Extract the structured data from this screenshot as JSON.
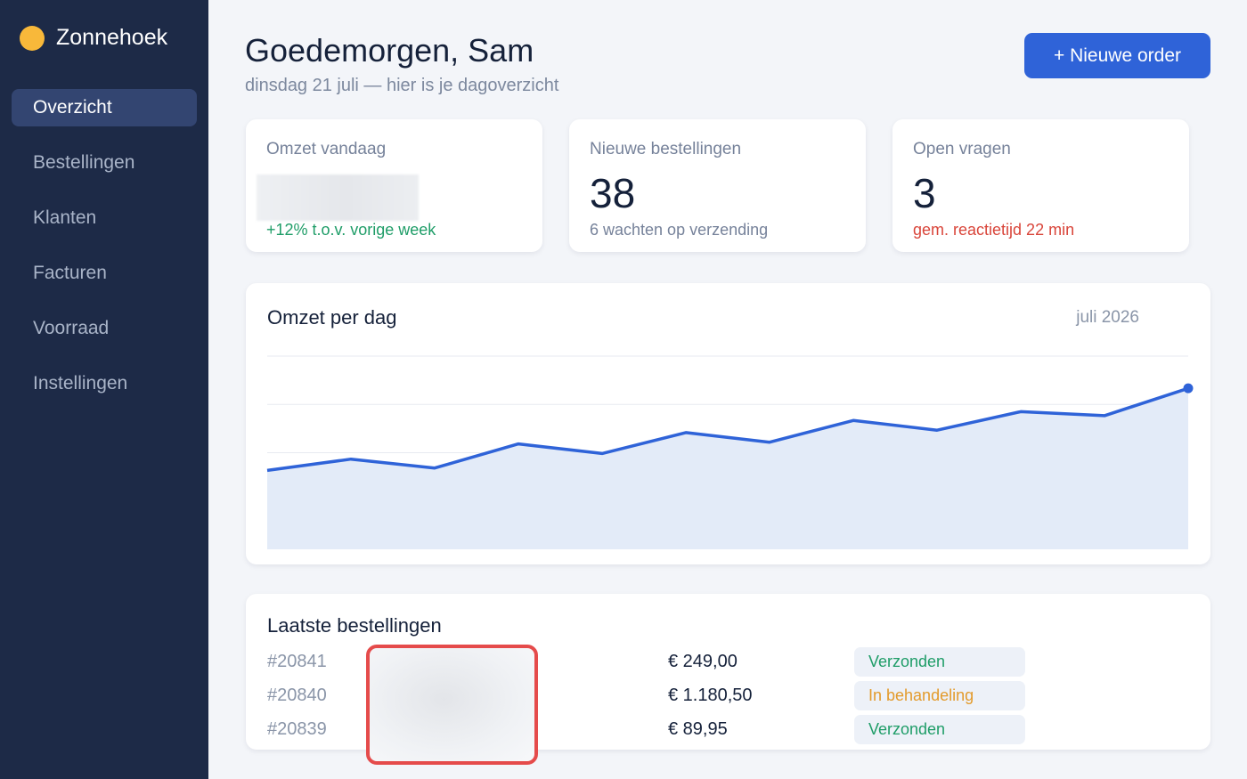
{
  "app": {
    "name": "Zonnehoek"
  },
  "colors": {
    "accent": "#2f63d8",
    "sidebar": "#1d2a47",
    "brand_dot": "#f8b83a",
    "positive": "#1f9d68",
    "negative": "#d9453a",
    "warning": "#e39b2c"
  },
  "sidebar": {
    "items": [
      {
        "label": "Overzicht",
        "active": true
      },
      {
        "label": "Bestellingen",
        "active": false
      },
      {
        "label": "Klanten",
        "active": false
      },
      {
        "label": "Facturen",
        "active": false
      },
      {
        "label": "Voorraad",
        "active": false
      },
      {
        "label": "Instellingen",
        "active": false
      }
    ]
  },
  "header": {
    "greeting": "Goedemorgen, Sam",
    "subtitle": "dinsdag 21 juli — hier is je dagoverzicht",
    "new_order_label": "+ Nieuwe order"
  },
  "stats": [
    {
      "label": "Omzet vandaag",
      "value": "",
      "sub": "+12% t.o.v. vorige week"
    },
    {
      "label": "Nieuwe bestellingen",
      "value": "38",
      "sub": "6 wachten op verzending"
    },
    {
      "label": "Open vragen",
      "value": "3",
      "sub": "gem. reactietijd 22 min"
    }
  ],
  "chart": {
    "title": "Omzet per dag",
    "period": "juli 2026"
  },
  "chart_data": {
    "type": "area",
    "title": "Omzet per dag",
    "x": [
      1,
      2,
      3,
      4,
      5,
      6,
      7,
      8,
      9,
      10,
      11,
      12
    ],
    "series": [
      {
        "values": [
          9.8,
          11.2,
          10.1,
          13.1,
          11.9,
          14.5,
          13.3,
          16.0,
          14.8,
          17.1,
          16.6,
          20.0
        ]
      }
    ],
    "ylim": [
      0,
      24
    ],
    "grid": true,
    "color": "#2f63d8",
    "fill": "#e3ebf8"
  },
  "orders": {
    "title": "Laatste bestellingen",
    "rows": [
      {
        "id": "#20841",
        "amount": "€ 249,00",
        "status": "Verzonden",
        "status_color": "#1f9d68"
      },
      {
        "id": "#20840",
        "amount": "€ 1.180,50",
        "status": "In behandeling",
        "status_color": "#e39b2c"
      },
      {
        "id": "#20839",
        "amount": "€ 89,95",
        "status": "Verzonden",
        "status_color": "#1f9d68"
      }
    ]
  }
}
